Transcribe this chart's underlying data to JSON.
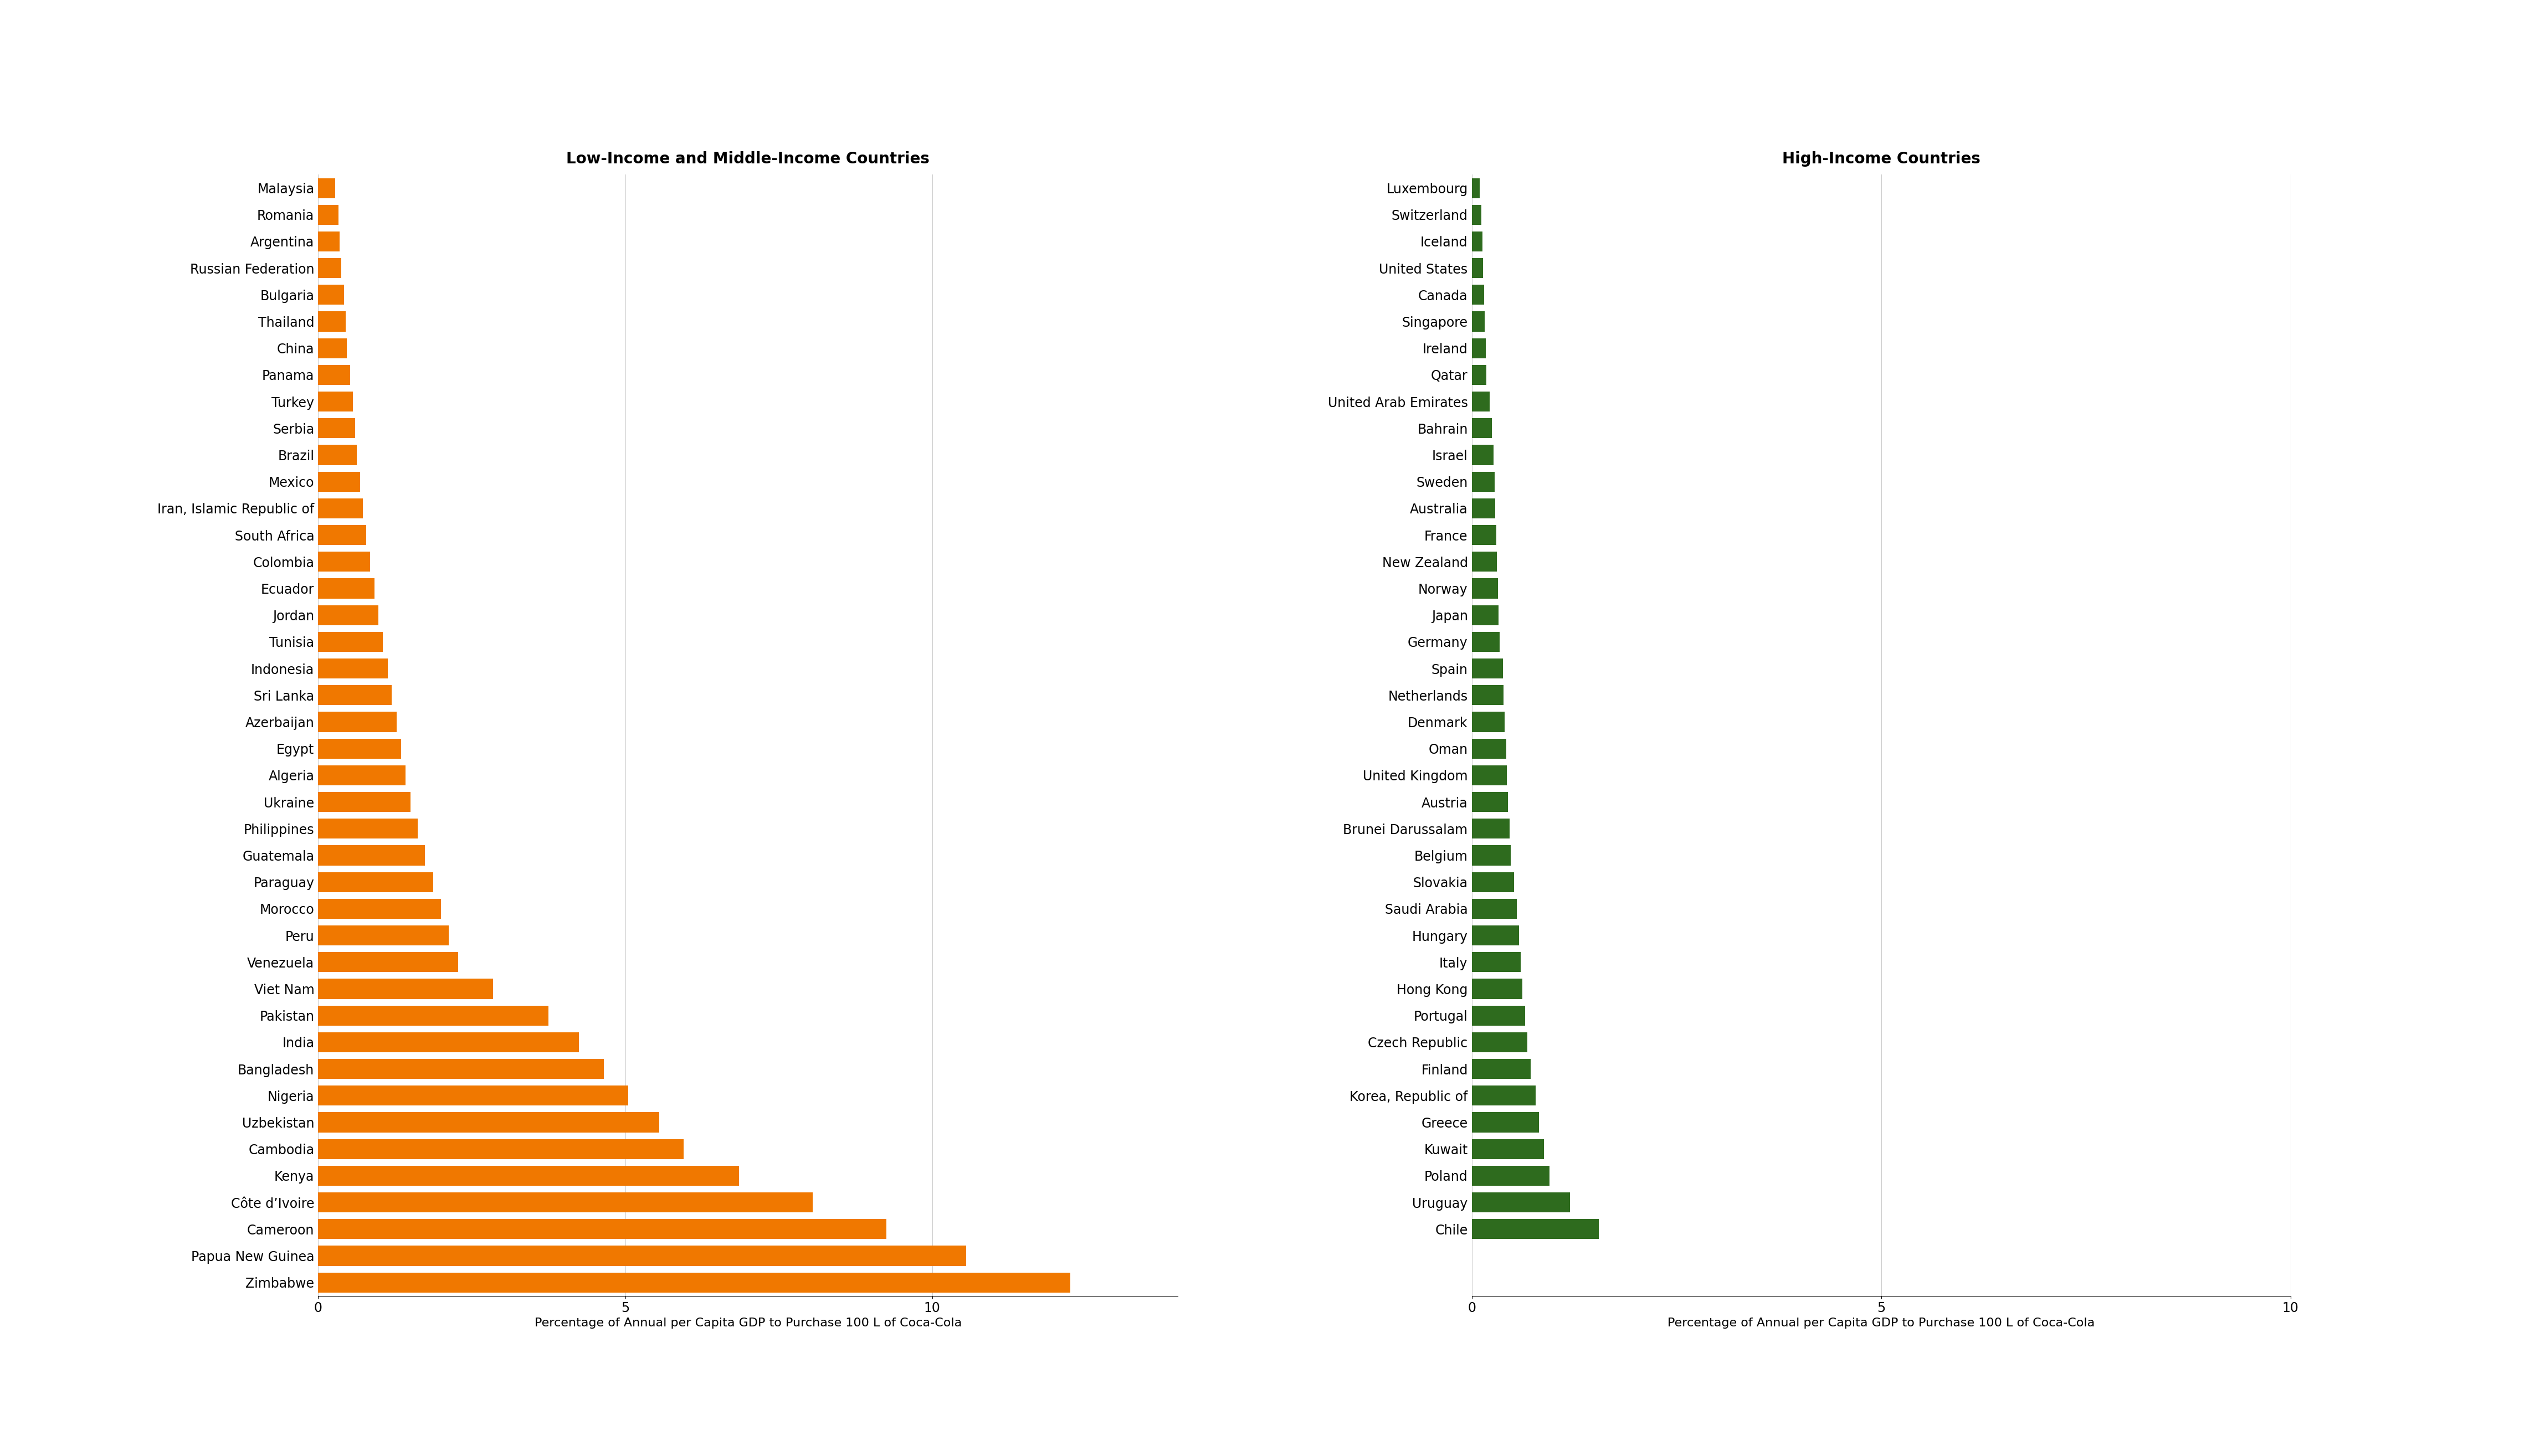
{
  "lmic_countries": [
    "Malaysia",
    "Romania",
    "Argentina",
    "Russian Federation",
    "Bulgaria",
    "Thailand",
    "China",
    "Panama",
    "Turkey",
    "Serbia",
    "Brazil",
    "Mexico",
    "Iran, Islamic Republic of",
    "South Africa",
    "Colombia",
    "Ecuador",
    "Jordan",
    "Tunisia",
    "Indonesia",
    "Sri Lanka",
    "Azerbaijan",
    "Egypt",
    "Algeria",
    "Ukraine",
    "Philippines",
    "Guatemala",
    "Paraguay",
    "Morocco",
    "Peru",
    "Venezuela",
    "Viet Nam",
    "Pakistan",
    "India",
    "Bangladesh",
    "Nigeria",
    "Uzbekistan",
    "Cambodia",
    "Kenya",
    "Côte d’Ivoire",
    "Cameroon",
    "Papua New Guinea",
    "Zimbabwe"
  ],
  "lmic_values": [
    0.28,
    0.33,
    0.35,
    0.38,
    0.42,
    0.45,
    0.47,
    0.52,
    0.57,
    0.6,
    0.63,
    0.68,
    0.73,
    0.78,
    0.85,
    0.92,
    0.98,
    1.05,
    1.13,
    1.2,
    1.28,
    1.35,
    1.42,
    1.5,
    1.62,
    1.74,
    1.87,
    2.0,
    2.13,
    2.28,
    2.85,
    3.75,
    4.25,
    4.65,
    5.05,
    5.55,
    5.95,
    6.85,
    8.05,
    9.25,
    10.55,
    12.25
  ],
  "hic_countries": [
    "Luxembourg",
    "Switzerland",
    "Iceland",
    "United States",
    "Canada",
    "Singapore",
    "Ireland",
    "Qatar",
    "United Arab Emirates",
    "Bahrain",
    "Israel",
    "Sweden",
    "Australia",
    "France",
    "New Zealand",
    "Norway",
    "Japan",
    "Germany",
    "Spain",
    "Netherlands",
    "Denmark",
    "Oman",
    "United Kingdom",
    "Austria",
    "Brunei Darussalam",
    "Belgium",
    "Slovakia",
    "Saudi Arabia",
    "Hungary",
    "Italy",
    "Hong Kong",
    "Portugal",
    "Czech Republic",
    "Finland",
    "Korea, Republic of",
    "Greece",
    "Kuwait",
    "Poland",
    "Uruguay",
    "Chile"
  ],
  "hic_values": [
    0.1,
    0.12,
    0.13,
    0.14,
    0.15,
    0.16,
    0.17,
    0.18,
    0.22,
    0.25,
    0.27,
    0.28,
    0.29,
    0.3,
    0.31,
    0.32,
    0.33,
    0.34,
    0.38,
    0.39,
    0.4,
    0.42,
    0.43,
    0.44,
    0.46,
    0.48,
    0.52,
    0.55,
    0.58,
    0.6,
    0.62,
    0.65,
    0.68,
    0.72,
    0.78,
    0.82,
    0.88,
    0.95,
    1.2,
    1.55
  ],
  "lmic_color": "#F07800",
  "hic_color": "#2E6B1E",
  "lmic_title": "Low-Income and Middle-Income Countries",
  "hic_title": "High-Income Countries",
  "xlabel": "Percentage of Annual per Capita GDP to Purchase 100 L of Coca-Cola",
  "lmic_xlim": [
    0,
    14
  ],
  "hic_xlim": [
    0,
    10
  ],
  "lmic_xticks": [
    0,
    5,
    10
  ],
  "hic_xticks": [
    0,
    5,
    10
  ],
  "title_fontsize": 20,
  "label_fontsize": 16,
  "tick_fontsize": 17,
  "bar_height": 0.75
}
